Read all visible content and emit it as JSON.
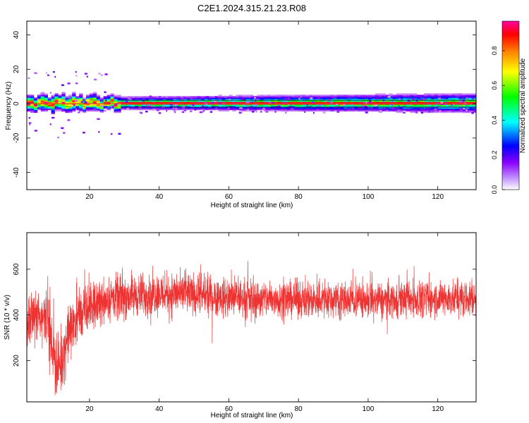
{
  "chart_data": [
    {
      "type": "heatmap",
      "title": "C2E1.2024.315.21.23.R08",
      "xlabel": "Height of straight line (km)",
      "ylabel": "Frequency (Hz)",
      "xlim": [
        2,
        131
      ],
      "ylim": [
        -50,
        48
      ],
      "x_ticks": [
        20,
        40,
        60,
        80,
        100,
        120
      ],
      "y_ticks": [
        -40,
        -20,
        0,
        20,
        40
      ],
      "grid": false,
      "colorbar": {
        "label": "Normalized spectral amplitude",
        "range": [
          0,
          0.97
        ],
        "ticks": [
          0.0,
          0.2,
          0.4,
          0.6,
          0.8
        ],
        "tick_labels": [
          "0.0",
          "0.2",
          "0.4",
          "0.6",
          "0.8"
        ],
        "colors": [
          "#ffffff",
          "#8b00ff",
          "#0000ff",
          "#00ffff",
          "#00ff00",
          "#ffff00",
          "#ff8000",
          "#ff0000",
          "#ff00a0"
        ]
      },
      "features": {
        "main_band_center_hz": 0,
        "main_band_halfwidth_hz": 2,
        "outer_band_halfwidth_hz": 4,
        "zigzag_segment_km": [
          2,
          29
        ]
      }
    },
    {
      "type": "line",
      "xlabel": "Height of straight line (km)",
      "ylabel": "SNR (10 * v/v)",
      "xlim": [
        2,
        131
      ],
      "ylim": [
        20,
        760
      ],
      "x_ticks": [
        20,
        40,
        60,
        80,
        100,
        120
      ],
      "y_ticks": [
        200,
        400,
        600
      ],
      "grid": false,
      "series": [
        {
          "color": "#ee3333",
          "x": [
            2,
            4,
            6,
            8,
            9,
            10,
            11,
            12,
            14,
            16,
            20,
            25,
            30,
            40,
            50,
            60,
            70,
            80,
            90,
            100,
            110,
            120,
            131
          ],
          "y": [
            350,
            400,
            380,
            420,
            260,
            230,
            150,
            200,
            320,
            380,
            430,
            470,
            480,
            495,
            490,
            475,
            470,
            470,
            470,
            465,
            470,
            470,
            470
          ],
          "spread": [
            150,
            160,
            170,
            190,
            200,
            220,
            200,
            190,
            180,
            170,
            150,
            140,
            140,
            135,
            130,
            125,
            120,
            120,
            120,
            115,
            115,
            115,
            115
          ]
        }
      ]
    }
  ]
}
